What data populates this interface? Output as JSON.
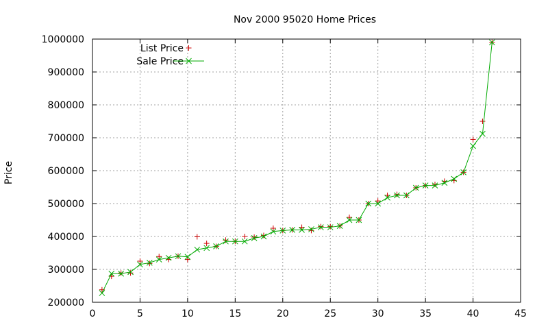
{
  "chart_data": {
    "type": "scatter",
    "title": "Nov 2000 95020 Home Prices",
    "xlabel": "",
    "ylabel": "Price",
    "xlim": [
      0,
      45
    ],
    "ylim": [
      200000,
      1000000
    ],
    "x_ticks": [
      "0",
      "5",
      "10",
      "15",
      "20",
      "25",
      "30",
      "35",
      "40",
      "45"
    ],
    "y_ticks": [
      "200000",
      "300000",
      "400000",
      "500000",
      "600000",
      "700000",
      "800000",
      "900000",
      "1000000"
    ],
    "grid": true,
    "legend_position": "top-left",
    "x": [
      1,
      2,
      3,
      4,
      5,
      6,
      7,
      8,
      9,
      10,
      11,
      12,
      13,
      14,
      15,
      16,
      17,
      18,
      19,
      20,
      21,
      22,
      23,
      24,
      25,
      26,
      27,
      28,
      29,
      30,
      31,
      32,
      33,
      34,
      35,
      36,
      37,
      38,
      39,
      40,
      41,
      42
    ],
    "series": [
      {
        "name": "List Price",
        "marker": "plus",
        "color": "#cc0000",
        "values": [
          238000,
          279000,
          289000,
          289000,
          325000,
          318000,
          339000,
          330000,
          340000,
          330000,
          399000,
          379000,
          370000,
          389000,
          385000,
          400000,
          398000,
          403000,
          425000,
          418000,
          420000,
          428000,
          418000,
          430000,
          430000,
          432000,
          458000,
          450000,
          500000,
          508000,
          525000,
          528000,
          525000,
          548000,
          555000,
          558000,
          568000,
          570000,
          595000,
          695000,
          750000,
          990000
        ]
      },
      {
        "name": "Sale Price",
        "marker": "x",
        "color": "#00aa00",
        "line": true,
        "values": [
          228000,
          287000,
          287000,
          292000,
          315000,
          320000,
          330000,
          335000,
          340000,
          338000,
          360000,
          365000,
          370000,
          385000,
          385000,
          385000,
          395000,
          400000,
          415000,
          418000,
          420000,
          420000,
          422000,
          428000,
          428000,
          432000,
          450000,
          450000,
          500000,
          500000,
          518000,
          525000,
          525000,
          548000,
          555000,
          555000,
          563000,
          575000,
          595000,
          675000,
          712000,
          990000
        ]
      }
    ]
  }
}
